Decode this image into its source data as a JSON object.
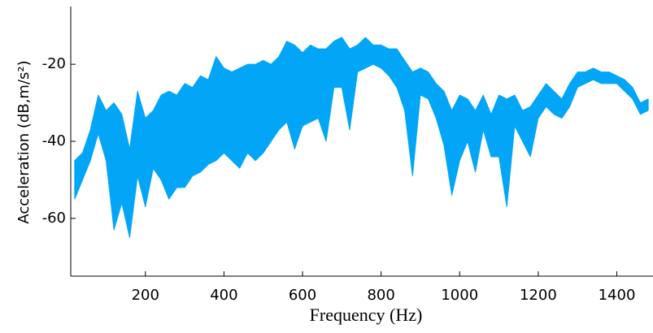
{
  "chart_data": {
    "type": "band",
    "x_label": "Frequency (Hz)",
    "y_label": "Acceleration (dB,m/s²)",
    "x": [
      20,
      40,
      60,
      80,
      100,
      120,
      140,
      160,
      180,
      200,
      220,
      240,
      260,
      280,
      300,
      320,
      340,
      360,
      380,
      400,
      420,
      440,
      460,
      480,
      500,
      520,
      540,
      560,
      580,
      600,
      620,
      640,
      660,
      680,
      700,
      720,
      740,
      760,
      780,
      800,
      820,
      840,
      860,
      880,
      900,
      920,
      940,
      960,
      980,
      1000,
      1020,
      1040,
      1060,
      1080,
      1100,
      1120,
      1140,
      1160,
      1180,
      1200,
      1220,
      1240,
      1260,
      1280,
      1300,
      1320,
      1340,
      1360,
      1380,
      1400,
      1420,
      1440,
      1460,
      1480
    ],
    "series": [
      {
        "color": "#03a6f6",
        "values": [
          -45,
          -43,
          -37,
          -28,
          -32,
          -30,
          -33,
          -42,
          -27,
          -34,
          -32,
          -28,
          -27,
          -28,
          -25,
          -26,
          -23,
          -24,
          -18,
          -21,
          -22,
          -21,
          -20,
          -20,
          -19,
          -20,
          -18,
          -14,
          -15,
          -17,
          -15,
          -16,
          -16,
          -14,
          -13,
          -16,
          -15,
          -13,
          -15,
          -15,
          -16,
          -16,
          -19,
          -22,
          -21,
          -22,
          -25,
          -27,
          -32,
          -28,
          -29,
          -32,
          -28,
          -33,
          -28,
          -29,
          -28,
          -32,
          -31,
          -28,
          -25,
          -27,
          -29,
          -25,
          -22,
          -22,
          -21,
          -22,
          -22,
          -23,
          -24,
          -26,
          -30,
          -29
        ]
      },
      {
        "color": "#03a6f6",
        "values": [
          -55,
          -50,
          -45,
          -38,
          -45,
          -63,
          -56,
          -65,
          -49,
          -57,
          -47,
          -50,
          -55,
          -52,
          -52,
          -49,
          -48,
          -46,
          -45,
          -43,
          -45,
          -47,
          -43,
          -45,
          -43,
          -40,
          -37,
          -35,
          -42,
          -36,
          -35,
          -34,
          -40,
          -26,
          -26,
          -37,
          -22,
          -21,
          -20,
          -21,
          -23,
          -26,
          -32,
          -49,
          -28,
          -29,
          -34,
          -41,
          -54,
          -45,
          -40,
          -48,
          -37,
          -44,
          -44,
          -57,
          -36,
          -40,
          -44,
          -34,
          -31,
          -33,
          -34,
          -31,
          -26,
          -25,
          -24,
          -25,
          -25,
          -25,
          -27,
          -29,
          -33,
          -32
        ]
      }
    ],
    "xlim": [
      10,
      1490
    ],
    "ylim": [
      -75,
      -5
    ],
    "xticks": [
      200,
      400,
      600,
      800,
      1000,
      1200,
      1400
    ],
    "yticks": [
      -60,
      -40,
      -20
    ]
  }
}
